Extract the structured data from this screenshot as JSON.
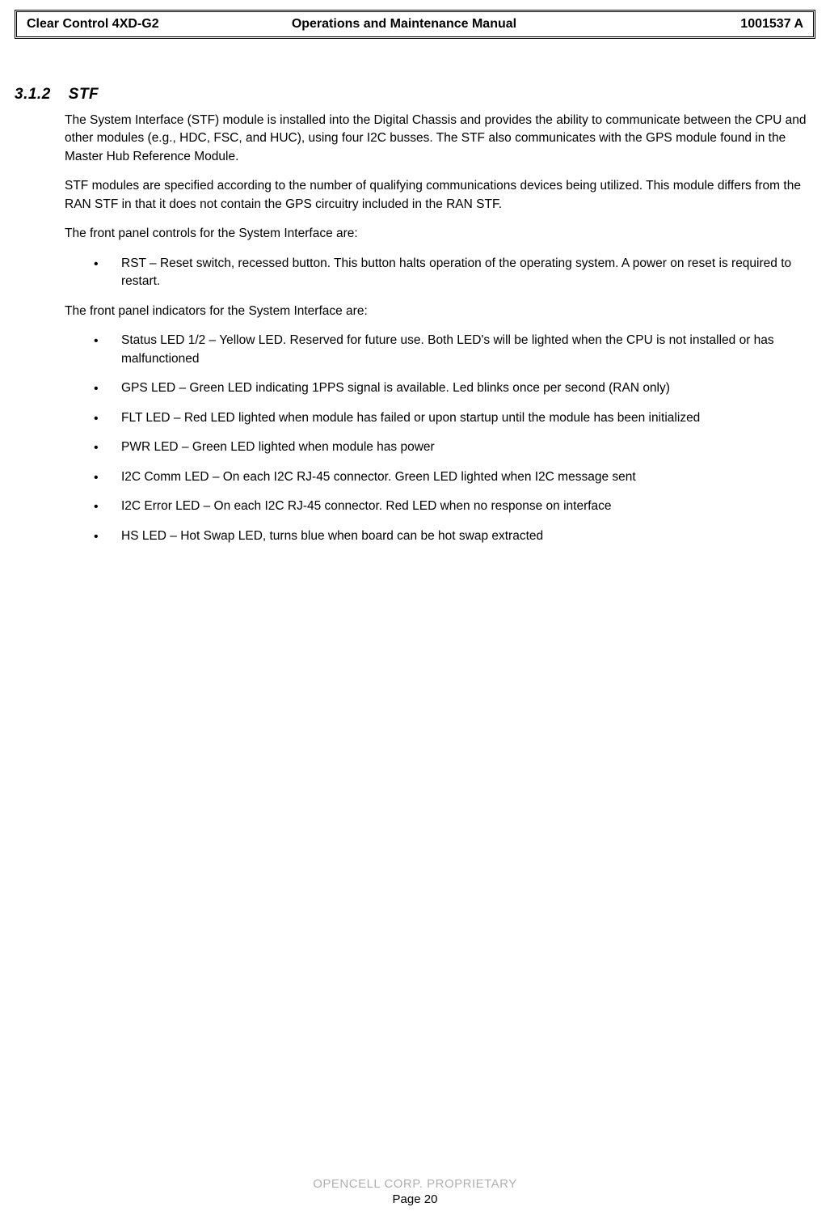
{
  "header": {
    "product": "Clear Control 4XD-G2",
    "title": "Operations and Maintenance Manual",
    "docnum": "1001537 A"
  },
  "section": {
    "number": "3.1.2",
    "title": "STF"
  },
  "paragraphs": {
    "p1": "The System Interface (STF) module is installed into the Digital Chassis and provides the ability to communicate between the CPU and other modules (e.g., HDC, FSC, and HUC), using four I2C busses. The STF also communicates with the GPS module found in the Master Hub Reference Module.",
    "p2": "STF modules are specified according to the number of qualifying communications devices being utilized. This module differs from the RAN STF in that it does not contain the GPS circuitry included in the RAN STF.",
    "p3": "The front panel controls for the System Interface are:",
    "p4": "The front panel indicators for the System Interface are:"
  },
  "controls_list": [
    "RST – Reset switch, recessed button.  This button halts operation of the operating system.  A power on reset is required to restart."
  ],
  "indicators_list": [
    "Status LED 1/2 – Yellow LED.  Reserved for future use. Both LED's will be lighted when the CPU is not installed or has malfunctioned",
    "GPS LED – Green LED indicating 1PPS signal is available.  Led blinks once per second (RAN only)",
    "FLT LED – Red LED lighted when module has failed or upon startup until the module has been initialized",
    "PWR LED – Green LED lighted when module has power",
    "I2C Comm LED – On each I2C RJ-45 connector.  Green LED lighted when I2C message sent",
    "I2C Error LED – On each I2C RJ-45 connector.  Red LED when no response on interface",
    "HS LED – Hot Swap LED, turns blue when board can be hot swap extracted"
  ],
  "footer": {
    "proprietary": "OPENCELL CORP.  PROPRIETARY",
    "page": "Page 20"
  }
}
